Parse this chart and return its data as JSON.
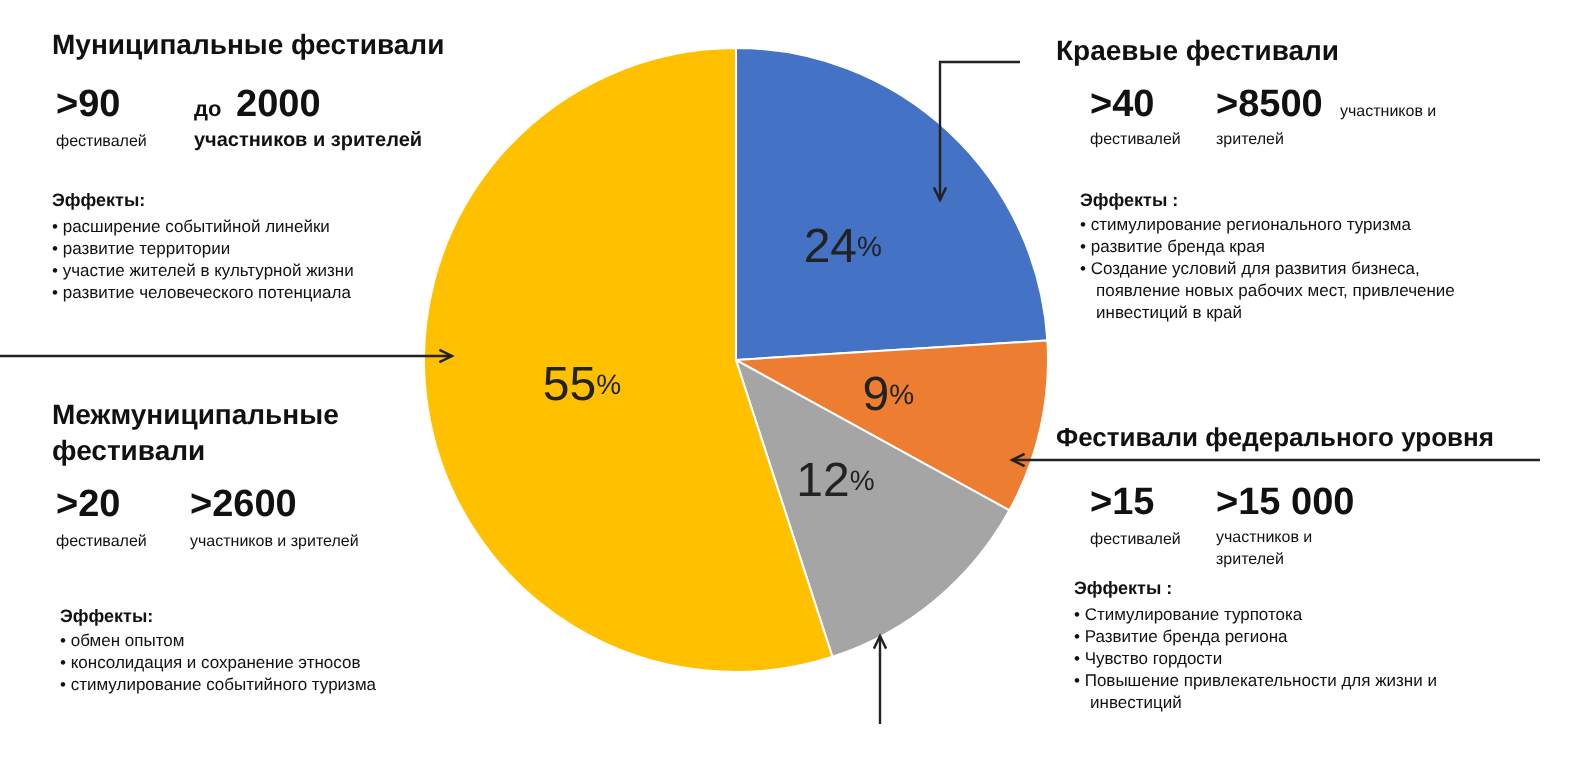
{
  "chart_data": {
    "type": "pie",
    "categories": [
      null,
      null,
      null,
      null
    ],
    "values": [
      24,
      9,
      12,
      55
    ],
    "colors": [
      "#4472c4",
      "#ed7d31",
      "#a5a5a5",
      "#ffc000"
    ],
    "value_labels": [
      "24%",
      "9%",
      "12%",
      "55%"
    ],
    "annotations": [
      "Муниципальные фестивали",
      ">90",
      "фестивалей",
      "до",
      "2000",
      "участников и зрителей",
      "Эффекты:",
      "• расширение событийной линейки",
      "• развитие территории",
      "• участие жителей в культурной жизни",
      "• развитие человеческого потенциала",
      "Межмуниципальные",
      "фестивали",
      ">20",
      "фестивалей",
      ">2600",
      "участников и зрителей",
      "Эффекты:",
      "• обмен опытом",
      "• консолидация и сохранение этносов",
      "• стимулирование событийного туризма",
      "Краевые фестивали",
      ">40",
      "фестивалей",
      ">8500",
      "участников и",
      "зрителей",
      "Эффекты :",
      "• стимулирование регионального туризма",
      "• развитие бренда края",
      "• Создание условий для развития бизнеса,",
      "появление новых рабочих мест, привлечение",
      "инвестиций в край",
      "Фестивали федерального уровня",
      ">15",
      "фестивалей",
      ">15 000",
      "участников и",
      "зрителей",
      "Эффекты :",
      "• Стимулирование турпотока",
      "• Развитие бренда региона",
      "• Чувство гордости",
      "• Повышение привлекательности для жизни и",
      "инвестиций"
    ]
  }
}
